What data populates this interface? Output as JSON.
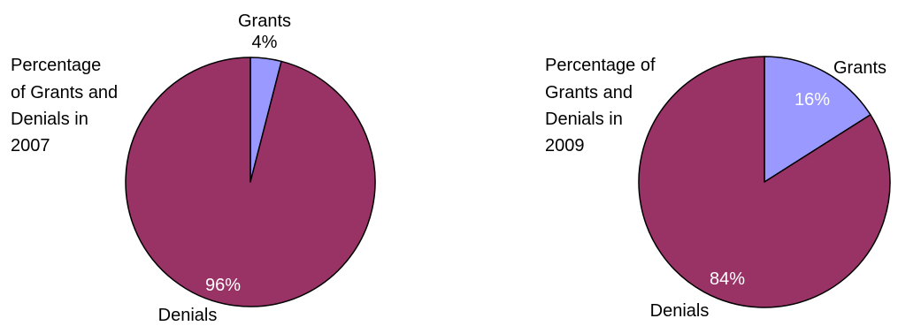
{
  "chart_data": [
    {
      "type": "pie",
      "title_lines": [
        "Percentage",
        "of Grants and",
        "Denials in",
        "2007"
      ],
      "slices": [
        {
          "label": "Grants",
          "value": 4,
          "value_label": "4%",
          "color": "#9999ff"
        },
        {
          "label": "Denials",
          "value": 96,
          "value_label": "96%",
          "color": "#993366"
        }
      ],
      "start_angle_deg": 0,
      "direction": "clockwise"
    },
    {
      "type": "pie",
      "title_lines": [
        "Percentage of",
        "Grants and",
        "Denials in",
        "2009"
      ],
      "slices": [
        {
          "label": "Grants",
          "value": 16,
          "value_label": "16%",
          "color": "#9999ff"
        },
        {
          "label": "Denials",
          "value": 84,
          "value_label": "84%",
          "color": "#993366"
        }
      ],
      "start_angle_deg": 0,
      "direction": "clockwise"
    }
  ]
}
